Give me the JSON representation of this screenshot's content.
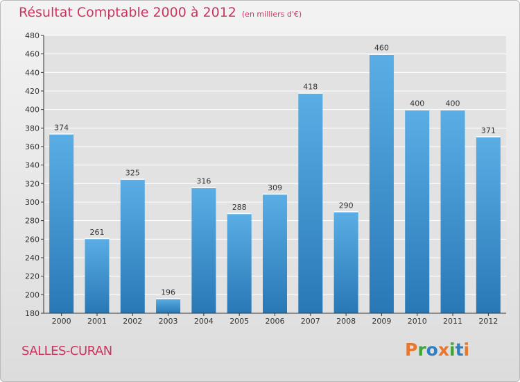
{
  "chart_data": {
    "type": "bar",
    "title": "Résultat Comptable 2000 à 2012",
    "subtitle": "(en milliers d'€)",
    "categories": [
      "2000",
      "2001",
      "2002",
      "2003",
      "2004",
      "2005",
      "2006",
      "2007",
      "2008",
      "2009",
      "2010",
      "2011",
      "2012"
    ],
    "values": [
      374,
      261,
      325,
      196,
      316,
      288,
      309,
      418,
      290,
      460,
      400,
      400,
      371
    ],
    "ylim": [
      180,
      480
    ],
    "yticks": [
      180,
      200,
      220,
      240,
      260,
      280,
      300,
      320,
      340,
      360,
      380,
      400,
      420,
      440,
      460,
      480
    ],
    "grid": true,
    "xlabel": "",
    "ylabel": ""
  },
  "location": "SALLES-CURAN",
  "brand": {
    "text": "Proxiti",
    "letter_colors": [
      "#e8772e",
      "#3fa535",
      "#2f7fc1",
      "#e8772e",
      "#3fa535",
      "#2f7fc1",
      "#e8772e"
    ]
  },
  "colors": {
    "accent": "#c8365e",
    "bar_top": "#5aaee5",
    "bar_bottom": "#2878b6",
    "grid": "#ffffff",
    "axis": "#333333"
  }
}
